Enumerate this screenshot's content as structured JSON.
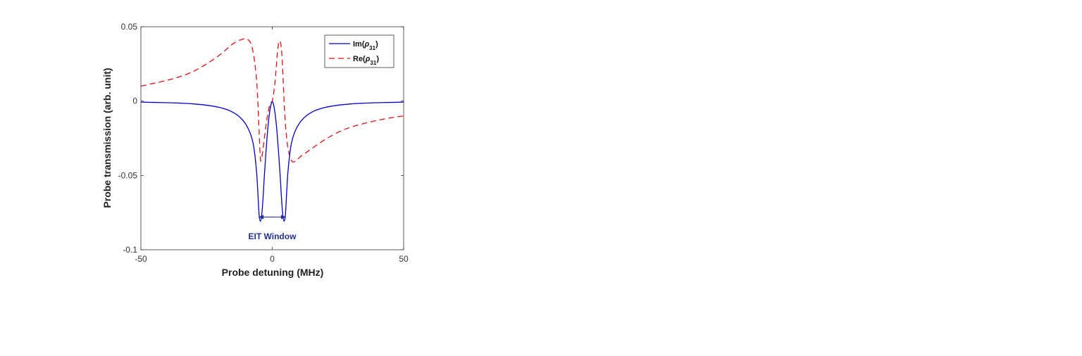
{
  "chart_data": {
    "type": "line",
    "title": "",
    "xlabel": "Probe detuning (MHz)",
    "ylabel": "Probe transmission (arb. unit)",
    "xlim": [
      -50,
      50
    ],
    "ylim": [
      -0.1,
      0.05
    ],
    "xticks": [
      -50,
      0,
      50
    ],
    "xtick_labels": [
      "-50",
      "0",
      "50"
    ],
    "yticks": [
      0.05,
      0,
      -0.05,
      -0.1
    ],
    "ytick_labels": [
      "0.05",
      "0",
      "-0.05",
      "-0.1"
    ],
    "grid": false,
    "legend": {
      "placement": "top-right"
    },
    "x": [
      -50,
      -45,
      -40,
      -35,
      -30,
      -25,
      -20,
      -17,
      -15,
      -13,
      -11,
      -10,
      -9,
      -8,
      -7,
      -6,
      -5.5,
      -5,
      -4.5,
      -4,
      -3.5,
      -3,
      -2.5,
      -2,
      -1.5,
      -1,
      -0.5,
      0,
      0.5,
      1,
      1.5,
      2,
      2.5,
      3,
      3.5,
      4,
      4.5,
      5,
      5.5,
      6,
      7,
      8,
      9,
      10,
      11,
      13,
      15,
      17,
      20,
      25,
      30,
      35,
      40,
      45,
      50
    ],
    "series": [
      {
        "name": "Im(ρ31)",
        "color": "#0000cc",
        "dash": "solid",
        "values": [
          -0.0007,
          -0.0009,
          -0.0011,
          -0.0014,
          -0.0019,
          -0.0028,
          -0.0043,
          -0.0059,
          -0.0075,
          -0.0098,
          -0.0133,
          -0.0158,
          -0.0191,
          -0.0236,
          -0.0312,
          -0.047,
          -0.061,
          -0.0765,
          -0.0808,
          -0.0765,
          -0.065,
          -0.05,
          -0.037,
          -0.025,
          -0.015,
          -0.0075,
          -0.0025,
          -0.0003,
          -0.0025,
          -0.0075,
          -0.015,
          -0.025,
          -0.037,
          -0.05,
          -0.065,
          -0.0765,
          -0.0808,
          -0.0765,
          -0.061,
          -0.047,
          -0.0312,
          -0.0236,
          -0.0191,
          -0.0158,
          -0.0133,
          -0.0098,
          -0.0075,
          -0.0059,
          -0.0043,
          -0.0028,
          -0.0019,
          -0.0014,
          -0.0011,
          -0.0009,
          -0.0007
        ]
      },
      {
        "name": "Re(ρ31)",
        "color": "#dd1111",
        "dash": "dashed",
        "values": [
          0.01,
          0.012,
          0.014,
          0.0165,
          0.02,
          0.025,
          0.031,
          0.0355,
          0.0385,
          0.0405,
          0.0418,
          0.042,
          0.041,
          0.038,
          0.03,
          0.015,
          0.0,
          -0.02,
          -0.039,
          -0.038,
          -0.032,
          -0.025,
          -0.018,
          -0.012,
          -0.007,
          -0.003,
          -0.001,
          0.0,
          0.005,
          0.012,
          0.022,
          0.033,
          0.0395,
          0.04,
          0.035,
          0.02,
          0.0,
          -0.015,
          -0.025,
          -0.032,
          -0.039,
          -0.041,
          -0.04,
          -0.0385,
          -0.037,
          -0.0345,
          -0.032,
          -0.0295,
          -0.026,
          -0.021,
          -0.0175,
          -0.015,
          -0.013,
          -0.0113,
          -0.01
        ]
      }
    ],
    "annotation": {
      "text": "EIT Window",
      "color": "#1f2f8f",
      "arrow_from_x": -5.2,
      "arrow_to_x": 5.2,
      "arrow_y": -0.078,
      "text_x": 0,
      "text_y": -0.091
    }
  }
}
